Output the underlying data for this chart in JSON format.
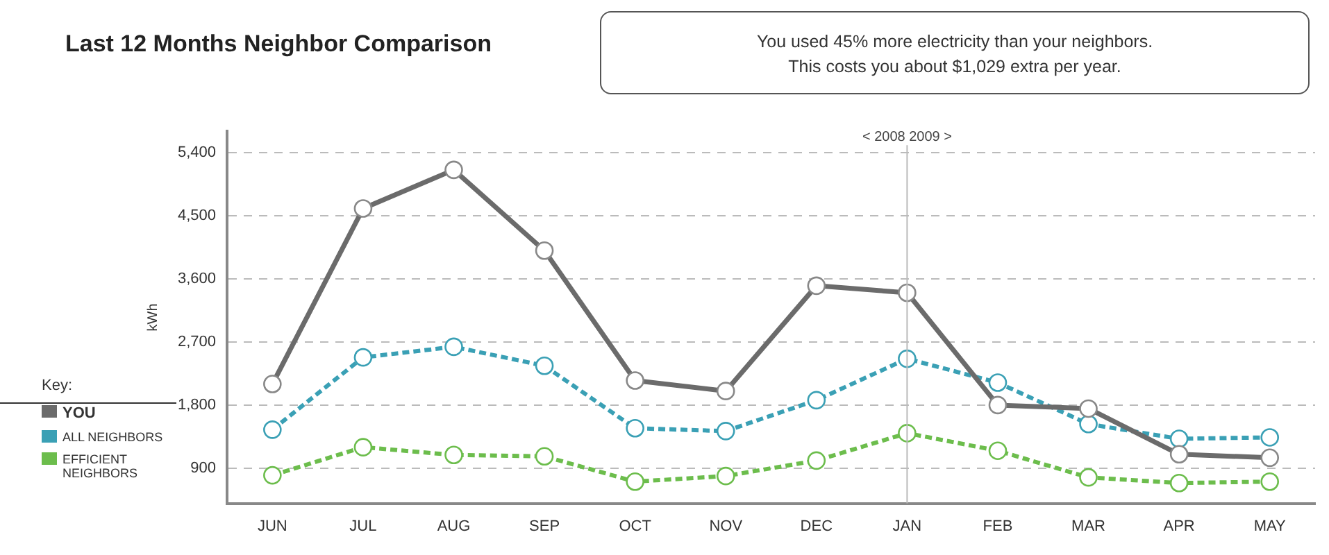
{
  "chart_data": {
    "type": "line",
    "title": "Last 12 Months Neighbor Comparison",
    "annotations": [
      "You used 45% more electricity than your neighbors.",
      "This costs you about $1,029 extra per year."
    ],
    "ylabel": "kWh",
    "legend_title": "Key:",
    "categories": [
      "JUN",
      "JUL",
      "AUG",
      "SEP",
      "OCT",
      "NOV",
      "DEC",
      "JAN",
      "FEB",
      "MAR",
      "APR",
      "MAY"
    ],
    "series": [
      {
        "name": "YOU",
        "color": "#6b6b6b",
        "line_style": "solid",
        "values": [
          2100,
          4600,
          5150,
          4000,
          2150,
          2000,
          3500,
          3400,
          1800,
          1750,
          1100,
          1050
        ]
      },
      {
        "name": "ALL NEIGHBORS",
        "color": "#3aa0b5",
        "line_style": "dashed",
        "values": [
          1450,
          2480,
          2630,
          2360,
          1470,
          1430,
          1870,
          2460,
          2120,
          1530,
          1320,
          1340
        ]
      },
      {
        "name": "EFFICIENT NEIGHBORS",
        "color": "#6cbd4c",
        "line_style": "dashed",
        "values": [
          800,
          1200,
          1090,
          1070,
          710,
          790,
          1010,
          1400,
          1150,
          770,
          690,
          710
        ]
      }
    ],
    "ylim": [
      400,
      5700
    ],
    "yticks": [
      900,
      {
        "value": 1800,
        "label": "1,800"
      },
      {
        "value": 2700,
        "label": "2,700"
      },
      {
        "value": 3600,
        "label": "3,600"
      },
      {
        "value": 4500,
        "label": "4,500"
      },
      {
        "value": 5400,
        "label": "5,400"
      }
    ],
    "ref_lines": [
      {
        "axis": "x",
        "value": "JAN",
        "label": "< 2008 2009 >",
        "color": "#bbbbbb"
      }
    ],
    "grid": "y",
    "legend": "left",
    "marker": "circle"
  }
}
